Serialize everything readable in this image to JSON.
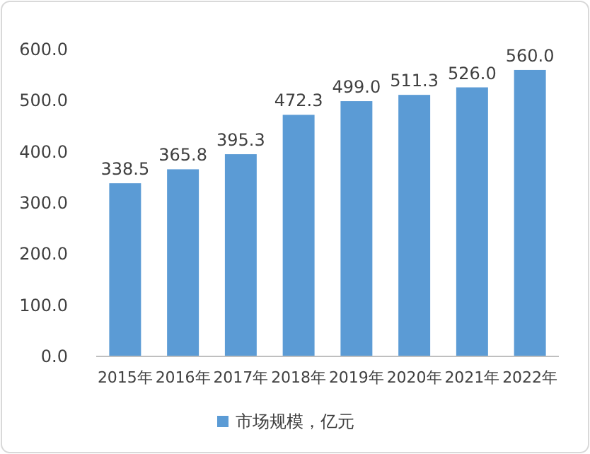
{
  "chart_data": {
    "type": "bar",
    "categories": [
      "2015年",
      "2016年",
      "2017年",
      "2018年",
      "2019年",
      "2020年",
      "2021年",
      "2022年"
    ],
    "series": [
      {
        "name": "市场规模，亿元",
        "color": "#5b9bd5",
        "values": [
          338.5,
          365.8,
          395.3,
          472.3,
          499.0,
          511.3,
          526.0,
          560.0
        ],
        "value_labels": [
          "338.5",
          "365.8",
          "395.3",
          "472.3",
          "499.0",
          "511.3",
          "526.0",
          "560.0"
        ]
      }
    ],
    "ylim": [
      0,
      600
    ],
    "yticks": [
      {
        "value": 0,
        "label": "0.0"
      },
      {
        "value": 100,
        "label": "100.0"
      },
      {
        "value": 200,
        "label": "200.0"
      },
      {
        "value": 300,
        "label": "300.0"
      },
      {
        "value": 400,
        "label": "400.0"
      },
      {
        "value": 500,
        "label": "500.0"
      },
      {
        "value": 600,
        "label": "600.0"
      }
    ],
    "grid": false,
    "legend": "bottom"
  }
}
